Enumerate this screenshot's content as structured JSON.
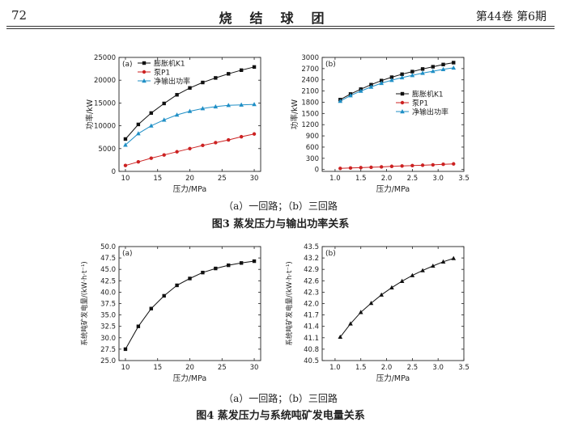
{
  "header": {
    "page_number": "72",
    "journal_title": "烧结球团",
    "issue": "第44卷 第6期"
  },
  "figure3": {
    "subcaption": "（a）一回路；（b）三回路",
    "caption": "图3  蒸发压力与输出功率关系"
  },
  "figure4": {
    "subcaption": "（a）一回路；（b）三回路",
    "caption": "图4  蒸发压力与系统吨矿发电量关系"
  },
  "chart_data": [
    {
      "id": "fig3a",
      "type": "line",
      "panel_label": "(a)",
      "xlabel": "压力/MPa",
      "ylabel": "功率/kW",
      "xlim": [
        9,
        31
      ],
      "ylim": [
        0,
        25000
      ],
      "xticks": [
        10,
        15,
        20,
        25,
        30
      ],
      "yticks": [
        0,
        5000,
        10000,
        15000,
        20000,
        25000
      ],
      "x": [
        10,
        12,
        14,
        16,
        18,
        20,
        22,
        24,
        26,
        28,
        30
      ],
      "series": [
        {
          "name": "膨胀机K1",
          "color": "#111111",
          "marker": "square",
          "values": [
            7100,
            10300,
            12800,
            14900,
            16800,
            18300,
            19500,
            20500,
            21400,
            22200,
            22900
          ]
        },
        {
          "name": "泵P1",
          "color": "#cc2222",
          "marker": "circle",
          "values": [
            1300,
            2100,
            2900,
            3600,
            4300,
            5000,
            5700,
            6300,
            6900,
            7600,
            8200
          ]
        },
        {
          "name": "净输出功率",
          "color": "#1f8fc6",
          "marker": "triangle",
          "values": [
            5800,
            8300,
            10000,
            11300,
            12400,
            13200,
            13800,
            14200,
            14500,
            14600,
            14700
          ]
        }
      ]
    },
    {
      "id": "fig3b",
      "type": "line",
      "panel_label": "(b)",
      "xlabel": "压力/MPa",
      "ylabel": "功率/kW",
      "xlim": [
        0.75,
        3.5
      ],
      "ylim": [
        -50,
        3000
      ],
      "xticks": [
        1.0,
        1.5,
        2.0,
        2.5,
        3.0,
        3.5
      ],
      "yticks": [
        0,
        300,
        600,
        900,
        1200,
        1500,
        1800,
        2100,
        2400,
        2700,
        3000
      ],
      "x": [
        1.1,
        1.3,
        1.5,
        1.7,
        1.9,
        2.1,
        2.3,
        2.5,
        2.7,
        2.9,
        3.1,
        3.3
      ],
      "series": [
        {
          "name": "膨胀机K1",
          "color": "#111111",
          "marker": "square",
          "values": [
            1870,
            2020,
            2150,
            2270,
            2380,
            2470,
            2550,
            2620,
            2690,
            2750,
            2810,
            2860
          ]
        },
        {
          "name": "泵P1",
          "color": "#cc2222",
          "marker": "circle",
          "values": [
            30,
            40,
            50,
            60,
            70,
            85,
            95,
            105,
            115,
            125,
            140,
            150
          ]
        },
        {
          "name": "净输出功率",
          "color": "#1f8fc6",
          "marker": "triangle",
          "values": [
            1830,
            1980,
            2100,
            2210,
            2310,
            2390,
            2460,
            2520,
            2580,
            2630,
            2680,
            2720
          ]
        }
      ]
    },
    {
      "id": "fig4a",
      "type": "line",
      "panel_label": "(a)",
      "xlabel": "压力/MPa",
      "ylabel": "系统吨矿发电量/(kW·h·t⁻¹)",
      "xlim": [
        9,
        31
      ],
      "ylim": [
        25.0,
        50.0
      ],
      "xticks": [
        10,
        15,
        20,
        25,
        30
      ],
      "yticks": [
        "25.0",
        "27.5",
        "30.0",
        "32.5",
        "35.0",
        "37.5",
        "40.0",
        "42.5",
        "45.0",
        "47.5",
        "50.0"
      ],
      "x": [
        10,
        12,
        14,
        16,
        18,
        20,
        22,
        24,
        26,
        28,
        30
      ],
      "series": [
        {
          "name": "系统吨矿发电量",
          "color": "#111111",
          "marker": "square",
          "values": [
            27.5,
            32.5,
            36.4,
            39.2,
            41.5,
            43.0,
            44.3,
            45.2,
            45.9,
            46.4,
            46.8
          ]
        }
      ]
    },
    {
      "id": "fig4b",
      "type": "line",
      "panel_label": "(b)",
      "xlabel": "压力/MPa",
      "ylabel": "系统吨矿发电量/(kW·h·t⁻¹)",
      "xlim": [
        0.75,
        3.5
      ],
      "ylim": [
        40.5,
        43.5
      ],
      "xticks": [
        1.0,
        1.5,
        2.0,
        2.5,
        3.0,
        3.5
      ],
      "yticks": [
        "40.5",
        "40.8",
        "41.1",
        "41.4",
        "41.7",
        "42.0",
        "42.3",
        "42.6",
        "42.9",
        "43.2",
        "43.5"
      ],
      "x": [
        1.1,
        1.3,
        1.5,
        1.7,
        1.9,
        2.1,
        2.3,
        2.5,
        2.7,
        2.9,
        3.1,
        3.3
      ],
      "series": [
        {
          "name": "系统吨矿发电量",
          "color": "#111111",
          "marker": "triangle",
          "values": [
            41.12,
            41.47,
            41.77,
            42.01,
            42.23,
            42.42,
            42.59,
            42.74,
            42.87,
            42.99,
            43.1,
            43.19
          ]
        }
      ]
    }
  ]
}
